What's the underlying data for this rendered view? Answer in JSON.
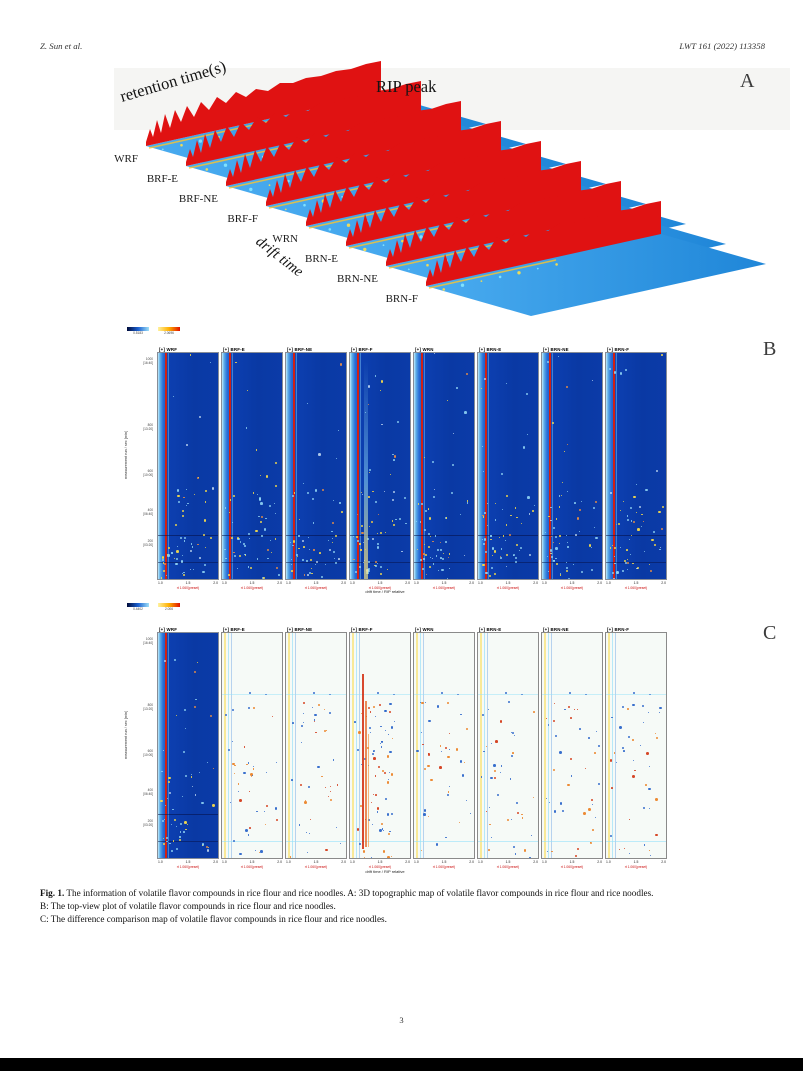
{
  "header": {
    "authors": "Z. Sun et al.",
    "journal": "LWT 161 (2022) 113358"
  },
  "panel_a": {
    "letter": "A",
    "retention_label": "retention time(s)",
    "rip_label": "RIP peak",
    "drift_label": "drift time",
    "samples": [
      "WRF",
      "BRF-E",
      "BRF-NE",
      "BRF-F",
      "WRN",
      "BRN-E",
      "BRN-NE",
      "BRN-F"
    ]
  },
  "panel_b": {
    "letter": "B",
    "colorbar_low": "0.5183",
    "colorbar_high": "2.0696",
    "columns": [
      "[+] WRF",
      "[+] BRF-E",
      "[+] BRF-NE",
      "[+] BRF-F",
      "[+] WRN",
      "[+] BRN-E",
      "[+] BRN-NE",
      "[+] BRN-F"
    ],
    "y_axis_label": "measurement run / sec [min]",
    "y_ticks": [
      {
        "v": "1000",
        "t": "[16:40]"
      },
      {
        "v": "800",
        "t": "[13:20]"
      },
      {
        "v": "600",
        "t": "[10:00]"
      },
      {
        "v": "400",
        "t": "[06:40]"
      },
      {
        "v": "200",
        "t": "[03:20]"
      }
    ],
    "x_ticks": [
      "1.0",
      "1.5",
      "2.0"
    ],
    "x_axis_label": "drift time / RIP relative",
    "column_annotation": "rt 1.060(preset)"
  },
  "panel_c": {
    "letter": "C",
    "colorbar_low": "0.4402",
    "colorbar_high": "2.006",
    "columns": [
      "[+] WRF",
      "[+] BRF-E",
      "[+] BRF-NE",
      "[+] BRF-F",
      "[+] WRN",
      "[+] BRN-E",
      "[+] BRN-NE",
      "[+] BRN-F"
    ],
    "y_axis_label": "measurement run / sec [min]",
    "y_ticks": [
      {
        "v": "1000",
        "t": "[16:40]"
      },
      {
        "v": "800",
        "t": "[13:20]"
      },
      {
        "v": "600",
        "t": "[10:00]"
      },
      {
        "v": "400",
        "t": "[06:40]"
      },
      {
        "v": "200",
        "t": "[03:20]"
      }
    ],
    "x_ticks": [
      "1.0",
      "1.5",
      "2.0"
    ],
    "x_axis_label": "drift time / RIP relative",
    "column_annotation": "rt 1.060(preset)"
  },
  "caption": {
    "fig_label": "Fig. 1.",
    "text_a": "The information of volatile flavor compounds in rice flour and rice noodles. A: 3D topographic map of volatile flavor compounds in rice flour and rice noodles.",
    "text_b": "B: The top-view plot of volatile flavor compounds in rice flour and rice noodles.",
    "text_c": "C: The difference comparison map of volatile flavor compounds in rice flour and rice noodles."
  },
  "page_number": "3"
}
